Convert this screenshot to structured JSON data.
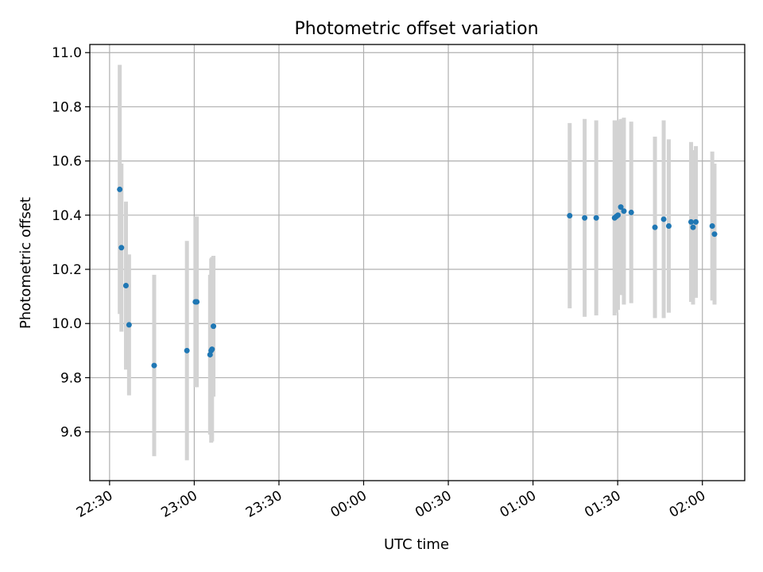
{
  "chart_data": {
    "type": "scatter",
    "title": "Photometric offset variation",
    "xlabel": "UTC time",
    "ylabel": "Photometric offset",
    "x_axis": "time",
    "x_tick_labels": [
      "22:30",
      "23:00",
      "23:30",
      "00:00",
      "00:30",
      "01:00",
      "01:30",
      "02:00"
    ],
    "y_ticks": [
      9.6,
      9.8,
      10.0,
      10.2,
      10.4,
      10.6,
      10.8,
      11.0
    ],
    "y_tick_labels": [
      "9.6",
      "9.8",
      "10.0",
      "10.2",
      "10.4",
      "10.6",
      "10.8",
      "11.0"
    ],
    "ylim": [
      9.42,
      11.03
    ],
    "xlim": [
      "22:23",
      "02:15"
    ],
    "grid": true,
    "colors": {
      "point": "#1f77b4",
      "errorbar": "#d3d3d3"
    },
    "points": [
      {
        "time": "22:33.6",
        "y": 10.495,
        "err": 0.46
      },
      {
        "time": "22:34.2",
        "y": 10.28,
        "err": 0.31
      },
      {
        "time": "22:35.8",
        "y": 10.14,
        "err": 0.31
      },
      {
        "time": "22:36.9",
        "y": 9.995,
        "err": 0.26
      },
      {
        "time": "22:45.8",
        "y": 9.845,
        "err": 0.335
      },
      {
        "time": "22:57.4",
        "y": 9.9,
        "err": 0.405
      },
      {
        "time": "23:00.4",
        "y": 10.08,
        "err": 0.315
      },
      {
        "time": "23:00.9",
        "y": 10.08,
        "err": 0.315
      },
      {
        "time": "23:05.6",
        "y": 9.885,
        "err": 0.295
      },
      {
        "time": "23:06.0",
        "y": 9.9,
        "err": 0.34
      },
      {
        "time": "23:06.3",
        "y": 9.905,
        "err": 0.34
      },
      {
        "time": "23:06.8",
        "y": 9.99,
        "err": 0.26
      },
      {
        "time": "01:13.0",
        "y": 10.398,
        "err": 0.342
      },
      {
        "time": "01:18.3",
        "y": 10.39,
        "err": 0.365
      },
      {
        "time": "01:22.4",
        "y": 10.39,
        "err": 0.36
      },
      {
        "time": "01:28.9",
        "y": 10.39,
        "err": 0.36
      },
      {
        "time": "01:29.5",
        "y": 10.395,
        "err": 0.355
      },
      {
        "time": "01:30.1",
        "y": 10.4,
        "err": 0.35
      },
      {
        "time": "01:31.1",
        "y": 10.43,
        "err": 0.325
      },
      {
        "time": "01:32.2",
        "y": 10.415,
        "err": 0.345
      },
      {
        "time": "01:34.8",
        "y": 10.41,
        "err": 0.335
      },
      {
        "time": "01:43.2",
        "y": 10.355,
        "err": 0.335
      },
      {
        "time": "01:46.3",
        "y": 10.385,
        "err": 0.365
      },
      {
        "time": "01:48.1",
        "y": 10.36,
        "err": 0.32
      },
      {
        "time": "01:56.0",
        "y": 10.375,
        "err": 0.295
      },
      {
        "time": "01:56.7",
        "y": 10.355,
        "err": 0.285
      },
      {
        "time": "01:57.7",
        "y": 10.375,
        "err": 0.28
      },
      {
        "time": "02:03.5",
        "y": 10.36,
        "err": 0.275
      },
      {
        "time": "02:04.3",
        "y": 10.33,
        "err": 0.26
      }
    ]
  }
}
